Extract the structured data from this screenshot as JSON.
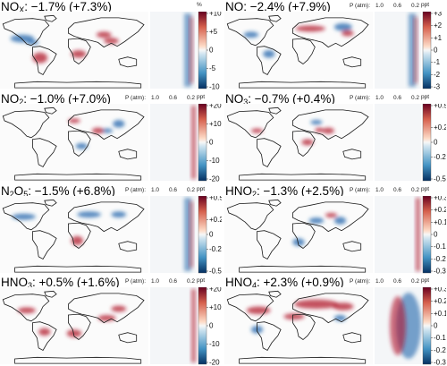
{
  "chart_data": [
    {
      "type": "heatmap",
      "species": "NO",
      "species_sub": "X",
      "title_rest": ": −1.7% (+7.3%)",
      "unit": "%",
      "colorbar_ticks": [
        {
          "label": "+10",
          "value": 10
        },
        {
          "label": "+5",
          "value": 5
        },
        {
          "label": "0",
          "value": 0
        },
        {
          "label": "-5",
          "value": -5
        },
        {
          "label": "-10",
          "value": -10
        }
      ],
      "colorbar_range": [
        -10,
        10
      ]
    },
    {
      "type": "heatmap",
      "species": "NO",
      "species_sub": "",
      "title_rest": ": −2.4% (+7.9%)",
      "unit": "ppt",
      "pressure_axis_label": "P (atm):",
      "pressure_ticks": [
        "1.0",
        "0.6",
        "0.2"
      ],
      "colorbar_ticks": [
        {
          "label": "+3",
          "value": 3
        },
        {
          "label": "+2",
          "value": 2
        },
        {
          "label": "+1",
          "value": 1
        },
        {
          "label": "0",
          "value": 0
        },
        {
          "label": "-1",
          "value": -1
        },
        {
          "label": "-2",
          "value": -2
        },
        {
          "label": "-3",
          "value": -3
        }
      ],
      "colorbar_range": [
        -3,
        3
      ]
    },
    {
      "type": "heatmap",
      "species": "NO",
      "species_sub": "2",
      "title_rest": ": −1.0% (+7.0%)",
      "unit": "ppt",
      "pressure_axis_label": "P (atm):",
      "pressure_ticks": [
        "1.0",
        "0.6",
        "0.2"
      ],
      "colorbar_ticks": [
        {
          "label": "+20",
          "value": 20
        },
        {
          "label": "+10",
          "value": 10
        },
        {
          "label": "0",
          "value": 0
        },
        {
          "label": "-10",
          "value": -10
        },
        {
          "label": "-20",
          "value": -20
        }
      ],
      "colorbar_range": [
        -20,
        20
      ]
    },
    {
      "type": "heatmap",
      "species": "NO",
      "species_sub": "3",
      "title_rest": ": −0.7% (+0.4%)",
      "unit": "ppt",
      "pressure_axis_label": "P (atm):",
      "pressure_ticks": [
        "1.0",
        "0.6",
        "0.2"
      ],
      "colorbar_ticks": [
        {
          "label": "+0.5",
          "value": 0.5
        },
        {
          "label": "+0.2",
          "value": 0.2
        },
        {
          "label": "0",
          "value": 0
        },
        {
          "label": "-0.2",
          "value": -0.2
        },
        {
          "label": "-0.5",
          "value": -0.5
        }
      ],
      "colorbar_range": [
        -0.5,
        0.5
      ]
    },
    {
      "type": "heatmap",
      "species": "N",
      "species_sub": "2",
      "species_tail": "O",
      "species_sub2": "5",
      "title_rest": ": −1.5% (+6.8%)",
      "unit": "ppt",
      "pressure_axis_label": "P (atm):",
      "pressure_ticks": [
        "1.0",
        "0.6",
        "0.2"
      ],
      "colorbar_ticks": [
        {
          "label": "+0.5",
          "value": 0.5
        },
        {
          "label": "+0.2",
          "value": 0.2
        },
        {
          "label": "0",
          "value": 0
        },
        {
          "label": "-0.2",
          "value": -0.2
        },
        {
          "label": "-0.5",
          "value": -0.5
        }
      ],
      "colorbar_range": [
        -0.5,
        0.5
      ]
    },
    {
      "type": "heatmap",
      "species": "HNO",
      "species_sub": "2",
      "title_rest": ": −1.3% (+2.5%)",
      "unit": "ppt",
      "pressure_axis_label": "P (atm):",
      "pressure_ticks": [
        "1.0",
        "0.6",
        "0.2"
      ],
      "colorbar_ticks": [
        {
          "label": "+0.3",
          "value": 0.3
        },
        {
          "label": "+0.2",
          "value": 0.2
        },
        {
          "label": "+0.1",
          "value": 0.1
        },
        {
          "label": "0",
          "value": 0
        },
        {
          "label": "-0.1",
          "value": -0.1
        },
        {
          "label": "-0.2",
          "value": -0.2
        },
        {
          "label": "-0.3",
          "value": -0.3
        }
      ],
      "colorbar_range": [
        -0.3,
        0.3
      ]
    },
    {
      "type": "heatmap",
      "species": "HNO",
      "species_sub": "3",
      "title_rest": ": +0.5% (+1.6%)",
      "unit": "ppt",
      "pressure_axis_label": "P (atm):",
      "pressure_ticks": [
        "1.0",
        "0.6",
        "0.2"
      ],
      "colorbar_ticks": [
        {
          "label": "+20",
          "value": 20
        },
        {
          "label": "+10",
          "value": 10
        },
        {
          "label": "0",
          "value": 0
        },
        {
          "label": "-10",
          "value": -10
        },
        {
          "label": "-20",
          "value": -20
        }
      ],
      "colorbar_range": [
        -20,
        20
      ]
    },
    {
      "type": "heatmap",
      "species": "HNO",
      "species_sub": "4",
      "title_rest": ": +2.3% (+0.9%)",
      "unit": "ppt",
      "pressure_axis_label": "P (atm):",
      "pressure_ticks": [
        "1.0",
        "0.6",
        "0.2"
      ],
      "colorbar_ticks": [
        {
          "label": "+0.3",
          "value": 0.3
        },
        {
          "label": "+0.2",
          "value": 0.2
        },
        {
          "label": "+0.1",
          "value": 0.1
        },
        {
          "label": "0",
          "value": 0
        },
        {
          "label": "-0.1",
          "value": -0.1
        },
        {
          "label": "-0.2",
          "value": -0.2
        },
        {
          "label": "-0.3",
          "value": -0.3
        }
      ],
      "colorbar_range": [
        -0.3,
        0.3
      ]
    }
  ],
  "colors": {
    "positive": "#b2182b",
    "negative": "#2166ac",
    "neutral": "#f7f7f7",
    "coast": "#1a1a1a"
  }
}
